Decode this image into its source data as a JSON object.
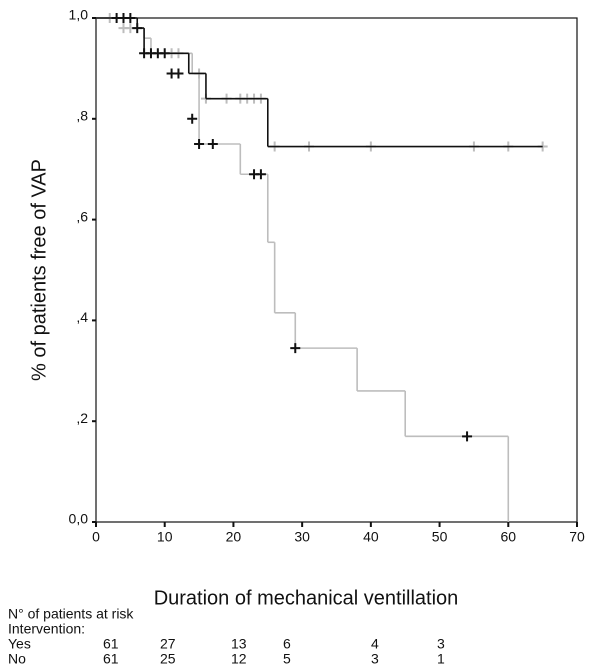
{
  "chart_data": {
    "type": "step",
    "y_axis_label": "% of patients free of VAP",
    "x_axis_label": "Duration of mechanical ventillation",
    "xlim": [
      0,
      70
    ],
    "ylim": [
      0,
      1
    ],
    "xticks": [
      0,
      10,
      20,
      30,
      40,
      50,
      60,
      70
    ],
    "yticks": [
      {
        "value": 0,
        "label": "0,0"
      },
      {
        "value": 0.2,
        "label": ",2"
      },
      {
        "value": 0.4,
        "label": ",4"
      },
      {
        "value": 0.6,
        "label": ",6"
      },
      {
        "value": 0.8,
        "label": ",8"
      },
      {
        "value": 1,
        "label": "1,0"
      }
    ],
    "series": [
      {
        "color": "#bdbdbd",
        "x": [
          0,
          4,
          7,
          8,
          14,
          15,
          21,
          25,
          26,
          29,
          38,
          45,
          60
        ],
        "values": [
          1,
          0.98,
          0.96,
          0.93,
          0.89,
          0.75,
          0.69,
          0.555,
          0.415,
          0.345,
          0.26,
          0.17,
          0
        ],
        "censored_x": [
          2,
          4,
          5,
          11,
          12,
          15,
          16,
          19,
          21,
          22,
          23,
          24,
          26,
          31,
          40,
          55,
          60,
          65
        ],
        "censored_values": [
          1,
          0.98,
          0.98,
          0.93,
          0.93,
          0.89,
          0.84,
          0.84,
          0.84,
          0.84,
          0.84,
          0.84,
          0.745,
          0.745,
          0.745,
          0.745,
          0.745,
          0.745
        ]
      },
      {
        "color": "#111111",
        "x": [
          0,
          6,
          7,
          13.5,
          16,
          25,
          65
        ],
        "values": [
          1,
          0.98,
          0.93,
          0.89,
          0.84,
          0.745,
          0.745
        ],
        "censored_x": [
          3,
          4,
          5,
          6,
          7,
          8,
          9,
          10,
          11,
          12,
          14,
          15,
          17,
          23,
          24,
          29,
          54
        ],
        "censored_values": [
          1,
          1,
          1,
          0.98,
          0.93,
          0.93,
          0.93,
          0.93,
          0.89,
          0.89,
          0.8,
          0.75,
          0.75,
          0.69,
          0.69,
          0.345,
          0.17
        ]
      }
    ]
  },
  "risk_table": {
    "title": "N° of patients at risk",
    "subtitle": "Intervention:",
    "rows": [
      {
        "label": "Yes",
        "values": [
          61,
          27,
          13,
          6,
          4,
          3
        ]
      },
      {
        "label": "No",
        "values": [
          61,
          25,
          12,
          5,
          3,
          1
        ]
      }
    ]
  }
}
